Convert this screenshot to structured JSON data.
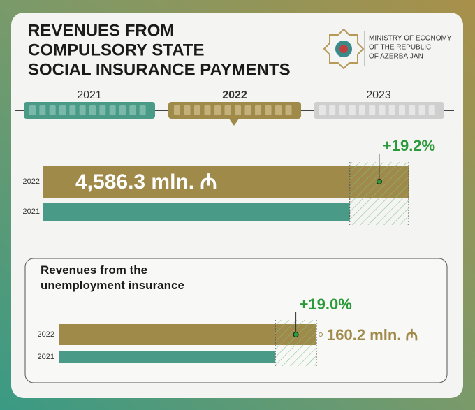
{
  "header": {
    "title": [
      "REVENUES FROM",
      "COMPULSORY STATE",
      "SOCIAL INSURANCE PAYMENTS"
    ],
    "ministry": [
      "MINISTRY OF ECONOMY",
      "OF THE REPUBLIC",
      "OF AZERBAIJAN"
    ]
  },
  "timeline": {
    "years": [
      "2021",
      "2022",
      "2023"
    ]
  },
  "chart_data": [
    {
      "type": "bar",
      "orientation": "horizontal",
      "categories": [
        "2022",
        "2021"
      ],
      "values": [
        4586.3,
        3847.6
      ],
      "value_labels": [
        "4,586.3 mln. ₼",
        null
      ],
      "colors": [
        "#a08a4a",
        "#4a9a88"
      ],
      "annotation": "+19.2%"
    },
    {
      "type": "bar",
      "orientation": "horizontal",
      "title": "Revenues from the unemployment insurance",
      "categories": [
        "2022",
        "2021"
      ],
      "values": [
        160.2,
        134.6
      ],
      "value_labels": [
        "160.2 mln. ₼",
        null
      ],
      "colors": [
        "#a08a4a",
        "#4a9a88"
      ],
      "annotation": "+19.0%"
    }
  ]
}
